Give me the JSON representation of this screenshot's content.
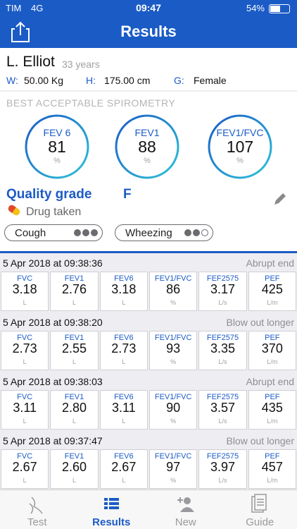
{
  "status": {
    "carrier": "TIM",
    "network": "4G",
    "time": "09:47",
    "battery": "54%"
  },
  "header": {
    "title": "Results"
  },
  "patient": {
    "name": "L. Elliot",
    "age": "33 years",
    "fields": [
      {
        "label": "W:",
        "value": "50.00 Kg"
      },
      {
        "label": "H:",
        "value": "175.00 cm"
      },
      {
        "label": "G:",
        "value": "Female"
      }
    ]
  },
  "best": {
    "title": "BEST ACCEPTABLE SPIROMETRY",
    "gauges": [
      {
        "label": "FEV 6",
        "value": "81",
        "unit": "%"
      },
      {
        "label": "FEV1",
        "value": "88",
        "unit": "%"
      },
      {
        "label": "FEV1/FVC",
        "value": "107",
        "unit": "%"
      }
    ]
  },
  "quality": {
    "label": "Quality grade",
    "grade": "F",
    "drug": "Drug taken",
    "symptoms": [
      {
        "name": "Cough",
        "level": 3
      },
      {
        "name": "Wheezing",
        "level": 2
      }
    ]
  },
  "tests": [
    {
      "datetime": "5 Apr 2018 at 09:38:36",
      "note": "Abrupt end",
      "metrics": [
        {
          "name": "FVC",
          "value": "3.18",
          "unit": "L"
        },
        {
          "name": "FEV1",
          "value": "2.76",
          "unit": "L"
        },
        {
          "name": "FEV6",
          "value": "3.18",
          "unit": "L"
        },
        {
          "name": "FEV1/FVC",
          "value": "86",
          "unit": "%"
        },
        {
          "name": "FEF2575",
          "value": "3.17",
          "unit": "L/s"
        },
        {
          "name": "PEF",
          "value": "425",
          "unit": "L/m"
        }
      ]
    },
    {
      "datetime": "5 Apr 2018 at 09:38:20",
      "note": "Blow out longer",
      "metrics": [
        {
          "name": "FVC",
          "value": "2.73",
          "unit": "L"
        },
        {
          "name": "FEV1",
          "value": "2.55",
          "unit": "L"
        },
        {
          "name": "FEV6",
          "value": "2.73",
          "unit": "L"
        },
        {
          "name": "FEV1/FVC",
          "value": "93",
          "unit": "%"
        },
        {
          "name": "FEF2575",
          "value": "3.35",
          "unit": "L/s"
        },
        {
          "name": "PEF",
          "value": "370",
          "unit": "L/m"
        }
      ]
    },
    {
      "datetime": "5 Apr 2018 at 09:38:03",
      "note": "Abrupt end",
      "metrics": [
        {
          "name": "FVC",
          "value": "3.11",
          "unit": "L"
        },
        {
          "name": "FEV1",
          "value": "2.80",
          "unit": "L"
        },
        {
          "name": "FEV6",
          "value": "3.11",
          "unit": "L"
        },
        {
          "name": "FEV1/FVC",
          "value": "90",
          "unit": "%"
        },
        {
          "name": "FEF2575",
          "value": "3.57",
          "unit": "L/s"
        },
        {
          "name": "PEF",
          "value": "435",
          "unit": "L/m"
        }
      ]
    },
    {
      "datetime": "5 Apr 2018 at 09:37:47",
      "note": "Blow out longer",
      "metrics": [
        {
          "name": "FVC",
          "value": "2.67",
          "unit": "L"
        },
        {
          "name": "FEV1",
          "value": "2.60",
          "unit": "L"
        },
        {
          "name": "FEV6",
          "value": "2.67",
          "unit": "L"
        },
        {
          "name": "FEV1/FVC",
          "value": "97",
          "unit": "%"
        },
        {
          "name": "FEF2575",
          "value": "3.97",
          "unit": "L/s"
        },
        {
          "name": "PEF",
          "value": "457",
          "unit": "L/m"
        }
      ]
    }
  ],
  "tabs": [
    {
      "label": "Test"
    },
    {
      "label": "Results",
      "active": true
    },
    {
      "label": "New"
    },
    {
      "label": "Guide"
    }
  ]
}
